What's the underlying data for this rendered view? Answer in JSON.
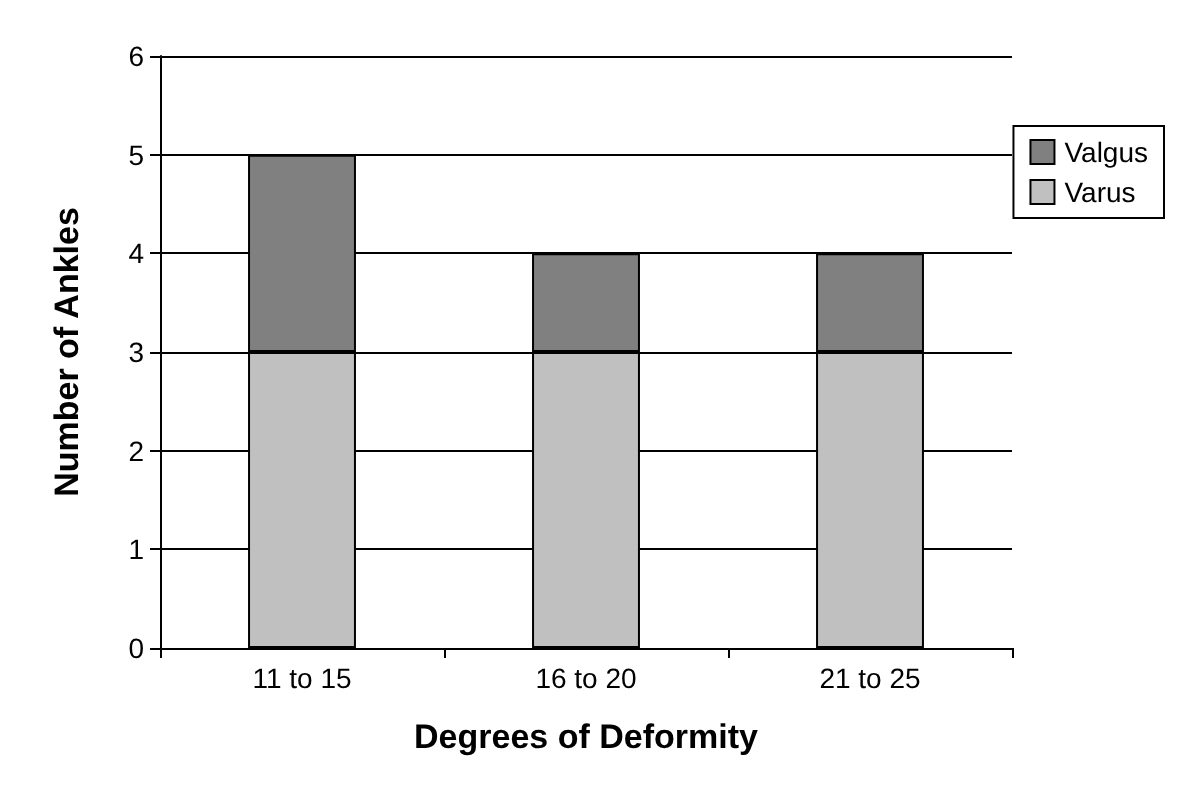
{
  "chart_data": {
    "type": "bar",
    "stacked": true,
    "xlabel": "Degrees of Deformity",
    "ylabel": "Number of Ankles",
    "categories": [
      "11 to 15",
      "16 to 20",
      "21 to 25"
    ],
    "series": [
      {
        "name": "Varus",
        "color": "#c0c0c0",
        "values": [
          3,
          3,
          3
        ]
      },
      {
        "name": "Valgus",
        "color": "#808080",
        "values": [
          2,
          1,
          1
        ]
      }
    ],
    "ylim": [
      0,
      6
    ],
    "yticks": [
      0,
      1,
      2,
      3,
      4,
      5,
      6
    ],
    "grid": "y",
    "legend": "right"
  }
}
